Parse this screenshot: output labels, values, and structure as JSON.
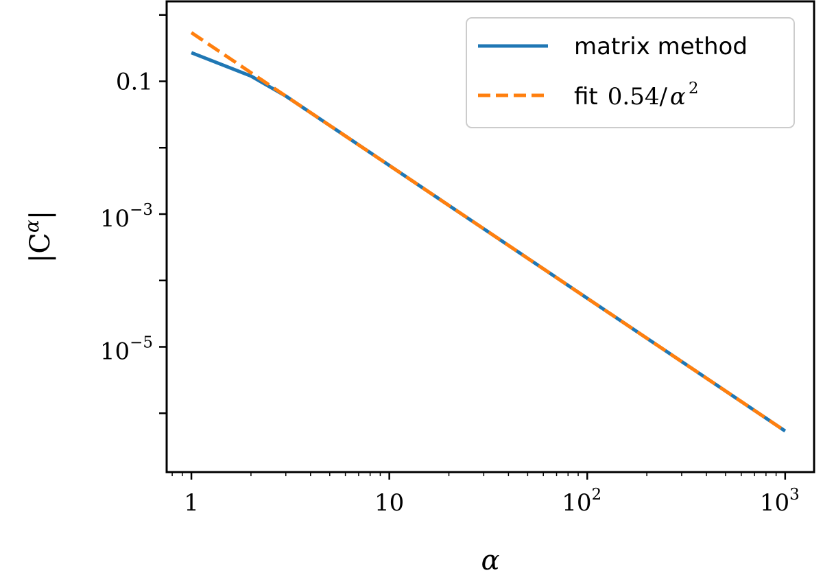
{
  "chart_data": {
    "type": "line",
    "x_scale": "log",
    "y_scale": "log",
    "xlabel": "α",
    "ylabel": "|Cα|",
    "xlim": [
      0.75,
      1400
    ],
    "ylim": [
      1.3e-07,
      1.6
    ],
    "x_ticks": [
      {
        "value": 1,
        "base": "1",
        "exp": ""
      },
      {
        "value": 10,
        "base": "10",
        "exp": ""
      },
      {
        "value": 100,
        "base": "10",
        "exp": "2"
      },
      {
        "value": 1000,
        "base": "10",
        "exp": "3"
      }
    ],
    "y_ticks": [
      {
        "value": 0.1,
        "base": "0.1",
        "exp": ""
      },
      {
        "value": 0.001,
        "base": "10",
        "exp": "−3"
      },
      {
        "value": 1e-05,
        "base": "10",
        "exp": "−5"
      }
    ],
    "grid": false,
    "legend_position": "top-right",
    "series": [
      {
        "name": "matrix method",
        "color": "#1f77b4",
        "style": "solid",
        "x": [
          1,
          2,
          3,
          5,
          10,
          20,
          50,
          100,
          200,
          500,
          1000
        ],
        "y": [
          0.27,
          0.12,
          0.06,
          0.0216,
          0.0054,
          0.00135,
          0.000216,
          5.4e-05,
          1.35e-05,
          2.16e-06,
          5.4e-07
        ]
      },
      {
        "name": "fit 0.54/α²",
        "color": "#ff7f0e",
        "style": "dashed",
        "x": [
          1,
          2,
          3,
          5,
          10,
          20,
          50,
          100,
          200,
          500,
          1000
        ],
        "y": [
          0.54,
          0.135,
          0.06,
          0.0216,
          0.0054,
          0.00135,
          0.000216,
          5.4e-05,
          1.35e-05,
          2.16e-06,
          5.4e-07
        ]
      }
    ],
    "legend": {
      "matrix_label": "matrix method",
      "fit_prefix": "fit",
      "fit_number": "0.54/",
      "fit_var": "α",
      "fit_exp": "2"
    }
  }
}
